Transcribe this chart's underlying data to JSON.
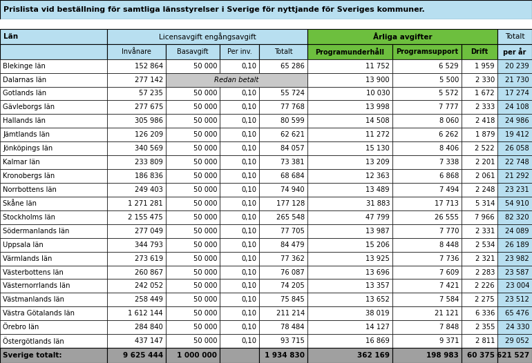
{
  "title": "Prislista vid beställning för samtliga länsstyrelser i Sverige för nyttjande för Sveriges kommuner.",
  "rows": [
    [
      "Blekinge län",
      "152 864",
      "50 000",
      "0,10",
      "65 286",
      "11 752",
      "6 529",
      "1 959",
      "20 239"
    ],
    [
      "Dalarnas län",
      "277 142",
      "REDAN",
      "",
      "",
      "13 900",
      "5 500",
      "2 330",
      "21 730"
    ],
    [
      "Gotlands län",
      "57 235",
      "50 000",
      "0,10",
      "55 724",
      "10 030",
      "5 572",
      "1 672",
      "17 274"
    ],
    [
      "Gävleborgs län",
      "277 675",
      "50 000",
      "0,10",
      "77 768",
      "13 998",
      "7 777",
      "2 333",
      "24 108"
    ],
    [
      "Hallands län",
      "305 986",
      "50 000",
      "0,10",
      "80 599",
      "14 508",
      "8 060",
      "2 418",
      "24 986"
    ],
    [
      "Jämtlands län",
      "126 209",
      "50 000",
      "0,10",
      "62 621",
      "11 272",
      "6 262",
      "1 879",
      "19 412"
    ],
    [
      "Jönköpings län",
      "340 569",
      "50 000",
      "0,10",
      "84 057",
      "15 130",
      "8 406",
      "2 522",
      "26 058"
    ],
    [
      "Kalmar län",
      "233 809",
      "50 000",
      "0,10",
      "73 381",
      "13 209",
      "7 338",
      "2 201",
      "22 748"
    ],
    [
      "Kronobergs län",
      "186 836",
      "50 000",
      "0,10",
      "68 684",
      "12 363",
      "6 868",
      "2 061",
      "21 292"
    ],
    [
      "Norrbottens län",
      "249 403",
      "50 000",
      "0,10",
      "74 940",
      "13 489",
      "7 494",
      "2 248",
      "23 231"
    ],
    [
      "Skåne län",
      "1 271 281",
      "50 000",
      "0,10",
      "177 128",
      "31 883",
      "17 713",
      "5 314",
      "54 910"
    ],
    [
      "Stockholms län",
      "2 155 475",
      "50 000",
      "0,10",
      "265 548",
      "47 799",
      "26 555",
      "7 966",
      "82 320"
    ],
    [
      "Södermanlands län",
      "277 049",
      "50 000",
      "0,10",
      "77 705",
      "13 987",
      "7 770",
      "2 331",
      "24 089"
    ],
    [
      "Uppsala län",
      "344 793",
      "50 000",
      "0,10",
      "84 479",
      "15 206",
      "8 448",
      "2 534",
      "26 189"
    ],
    [
      "Värmlands län",
      "273 619",
      "50 000",
      "0,10",
      "77 362",
      "13 925",
      "7 736",
      "2 321",
      "23 982"
    ],
    [
      "Västerbottens län",
      "260 867",
      "50 000",
      "0,10",
      "76 087",
      "13 696",
      "7 609",
      "2 283",
      "23 587"
    ],
    [
      "Västernorrlands län",
      "242 052",
      "50 000",
      "0,10",
      "74 205",
      "13 357",
      "7 421",
      "2 226",
      "23 004"
    ],
    [
      "Västmanlands län",
      "258 449",
      "50 000",
      "0,10",
      "75 845",
      "13 652",
      "7 584",
      "2 275",
      "23 512"
    ],
    [
      "Västra Götalands län",
      "1 612 144",
      "50 000",
      "0,10",
      "211 214",
      "38 019",
      "21 121",
      "6 336",
      "65 476"
    ],
    [
      "Örebro län",
      "284 840",
      "50 000",
      "0,10",
      "78 484",
      "14 127",
      "7 848",
      "2 355",
      "24 330"
    ],
    [
      "Östergötlands län",
      "437 147",
      "50 000",
      "0,10",
      "93 715",
      "16 869",
      "9 371",
      "2 811",
      "29 052"
    ]
  ],
  "footer": [
    "Sverige totalt:",
    "9 625 444",
    "1 000 000",
    "",
    "1 934 830",
    "362 169",
    "198 983",
    "60 375",
    "621 527"
  ],
  "color_light_blue": "#b8dff0",
  "color_green": "#6dbf3e",
  "color_redan_betalt": "#c8c8c8",
  "color_white": "#ffffff",
  "color_footer": "#a0a0a0",
  "color_totalt_col": "#b8dff0"
}
